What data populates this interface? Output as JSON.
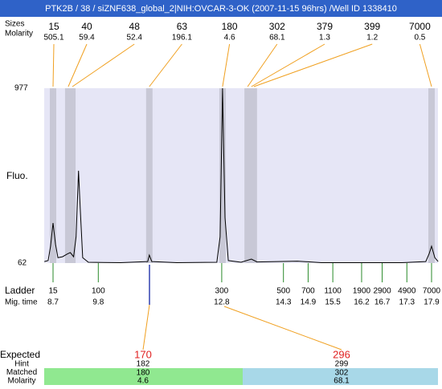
{
  "header": {
    "title": "PTK2B / 38 / siZNF638_global_2|NIH:OVCAR-3-OK (2007-11-15 96hrs) /Well ID 1338410"
  },
  "peak_labels": {
    "size_label": "Sizes",
    "molarity_label": "Molarity"
  },
  "peaks": [
    {
      "size": 15,
      "molarity": 505.1,
      "time": 8.7
    },
    {
      "size": 40,
      "molarity": 59.4,
      "time": 9.07
    },
    {
      "size": 48,
      "molarity": 52.4,
      "time": 9.17
    },
    {
      "size": 63,
      "molarity": 196.1,
      "time": 11.04
    },
    {
      "size": 180,
      "molarity": 4.6,
      "time": 12.82
    },
    {
      "size": 302,
      "molarity": 68.1,
      "time": 13.43
    },
    {
      "size": 379,
      "molarity": 1.3,
      "time": 13.52
    },
    {
      "size": 399,
      "molarity": 1.2,
      "time": 13.58
    },
    {
      "size": 7000,
      "molarity": 0.5,
      "time": 17.9
    }
  ],
  "y_axis": {
    "label": "Fluo.",
    "max": 977,
    "min": 62
  },
  "trace": {
    "time": [
      8.49,
      8.58,
      8.64,
      8.7,
      8.76,
      8.82,
      8.93,
      9.05,
      9.12,
      9.2,
      9.26,
      9.32,
      9.36,
      9.42,
      9.56,
      10.34,
      11.0,
      11.04,
      11.1,
      11.71,
      12.68,
      12.76,
      12.82,
      12.88,
      12.96,
      13.27,
      13.52,
      13.66,
      14.64,
      15.22,
      17.18,
      17.76,
      17.84,
      17.9,
      17.98,
      18.06
    ],
    "fluo": [
      70,
      75,
      150,
      272,
      160,
      90,
      95,
      110,
      117,
      95,
      200,
      545,
      350,
      90,
      66,
      64,
      70,
      104,
      70,
      64,
      66,
      200,
      977,
      300,
      75,
      66,
      83,
      68,
      72,
      64,
      64,
      70,
      110,
      150,
      90,
      70
    ]
  },
  "ladder": {
    "label": "Ladder",
    "time_label": "Mig. time",
    "sizes": [
      15,
      100,
      300,
      500,
      700,
      1100,
      1900,
      2900,
      4900,
      7000
    ],
    "times": [
      8.7,
      9.8,
      12.8,
      14.3,
      14.9,
      15.5,
      16.2,
      16.7,
      17.3,
      17.9
    ]
  },
  "expected": {
    "label": "Expected",
    "row_labels": [
      "Hint",
      "Matched",
      "Molarity"
    ],
    "columns": [
      {
        "expected": 170,
        "hint": 182,
        "matched": 180,
        "molarity": 4.6
      },
      {
        "expected": 296,
        "hint": 299,
        "matched": 302,
        "molarity": 68.1
      }
    ]
  }
}
